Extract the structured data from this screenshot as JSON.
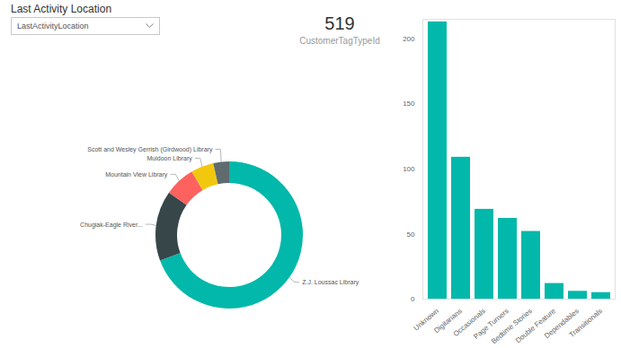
{
  "slicer": {
    "title": "Last Activity Location",
    "placeholder": "LastActivityLocation"
  },
  "card": {
    "value": 519,
    "label": "CustomerTagTypeId"
  },
  "chart_data": [
    {
      "type": "donut",
      "categories": [
        "Z.J. Loussac Library",
        "Chugiak-Eagle River...",
        "Mountain View Library",
        "Muldoon Library",
        "Scott and Wesley Gerrish (Girdwood) Library"
      ],
      "values": [
        360,
        80,
        35,
        26,
        18
      ],
      "colors": [
        "#01B8AA",
        "#374649",
        "#FD625E",
        "#F2C80F",
        "#5F6B6D"
      ]
    },
    {
      "type": "bar",
      "categories": [
        "Unknown",
        "Digitarians",
        "Occasionals",
        "Page Turners",
        "Bedtime Stories",
        "Double Feature",
        "Dependables",
        "Transitionals"
      ],
      "values": [
        213,
        109,
        69,
        62,
        52,
        12,
        6,
        5
      ],
      "color": "#01B8AA",
      "ylim": [
        0,
        215
      ],
      "yticks": [
        0,
        50,
        100,
        150,
        200
      ],
      "grid": false
    }
  ]
}
